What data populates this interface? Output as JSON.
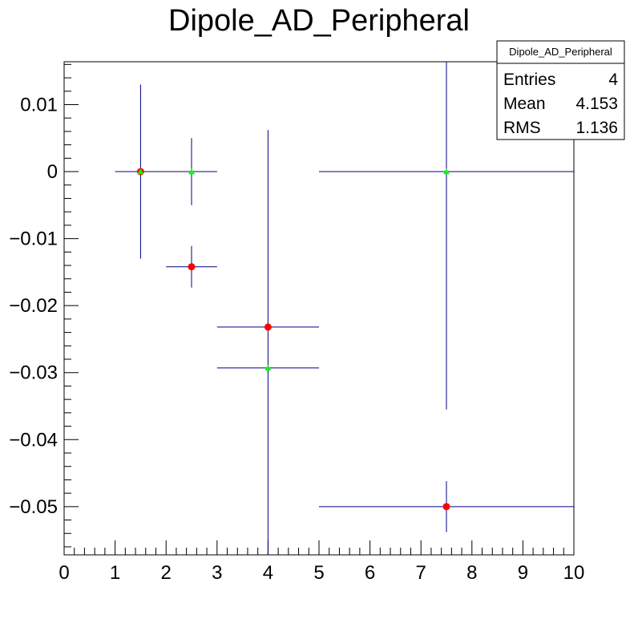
{
  "chart_data": {
    "type": "scatter",
    "title": "Dipole_AD_Peripheral",
    "xlim": [
      0,
      10
    ],
    "ylim": [
      -0.0572,
      0.0164
    ],
    "x_ticks": [
      0,
      1,
      2,
      3,
      4,
      5,
      6,
      7,
      8,
      9,
      10
    ],
    "y_ticks": [
      0.01,
      0,
      -0.01,
      -0.02,
      -0.03,
      -0.04,
      -0.05
    ],
    "y_tick_labels": [
      "0.01",
      "0",
      "−0.01",
      "−0.02",
      "−0.03",
      "−0.04",
      "−0.05"
    ],
    "grid": false,
    "series": [
      {
        "marker": "circle",
        "color": "#ff0000",
        "points": [
          {
            "x": 1.5,
            "y": 0.0,
            "xerr": 0.5,
            "yerr": 0.0
          },
          {
            "x": 2.5,
            "y": -0.0142,
            "xerr": 0.5,
            "yerr": 0.0031
          },
          {
            "x": 4.0,
            "y": -0.0232,
            "xerr": 1.0,
            "yerr": 0.0
          },
          {
            "x": 7.5,
            "y": -0.05,
            "xerr": 2.5,
            "yerr": 0.0038
          }
        ]
      },
      {
        "marker": "triangle",
        "color": "#00ff00",
        "points": [
          {
            "x": 1.5,
            "y": 0.0,
            "xerr": 0.5,
            "yerr": 0.013
          },
          {
            "x": 2.5,
            "y": 0.0,
            "xerr": 0.5,
            "yerr": 0.005
          },
          {
            "x": 4.0,
            "y": -0.0293,
            "xerr": 1.0,
            "yerr": 0.0355
          },
          {
            "x": 7.5,
            "y": 0.0,
            "xerr": 2.5,
            "yerr": 0.0355
          }
        ]
      }
    ],
    "error_bar_color": "#000080",
    "stats_box": {
      "title": "Dipole_AD_Peripheral",
      "rows": [
        {
          "label": "Entries",
          "value": "4"
        },
        {
          "label": "Mean",
          "value": "4.153"
        },
        {
          "label": "RMS",
          "value": "1.136"
        }
      ]
    }
  }
}
